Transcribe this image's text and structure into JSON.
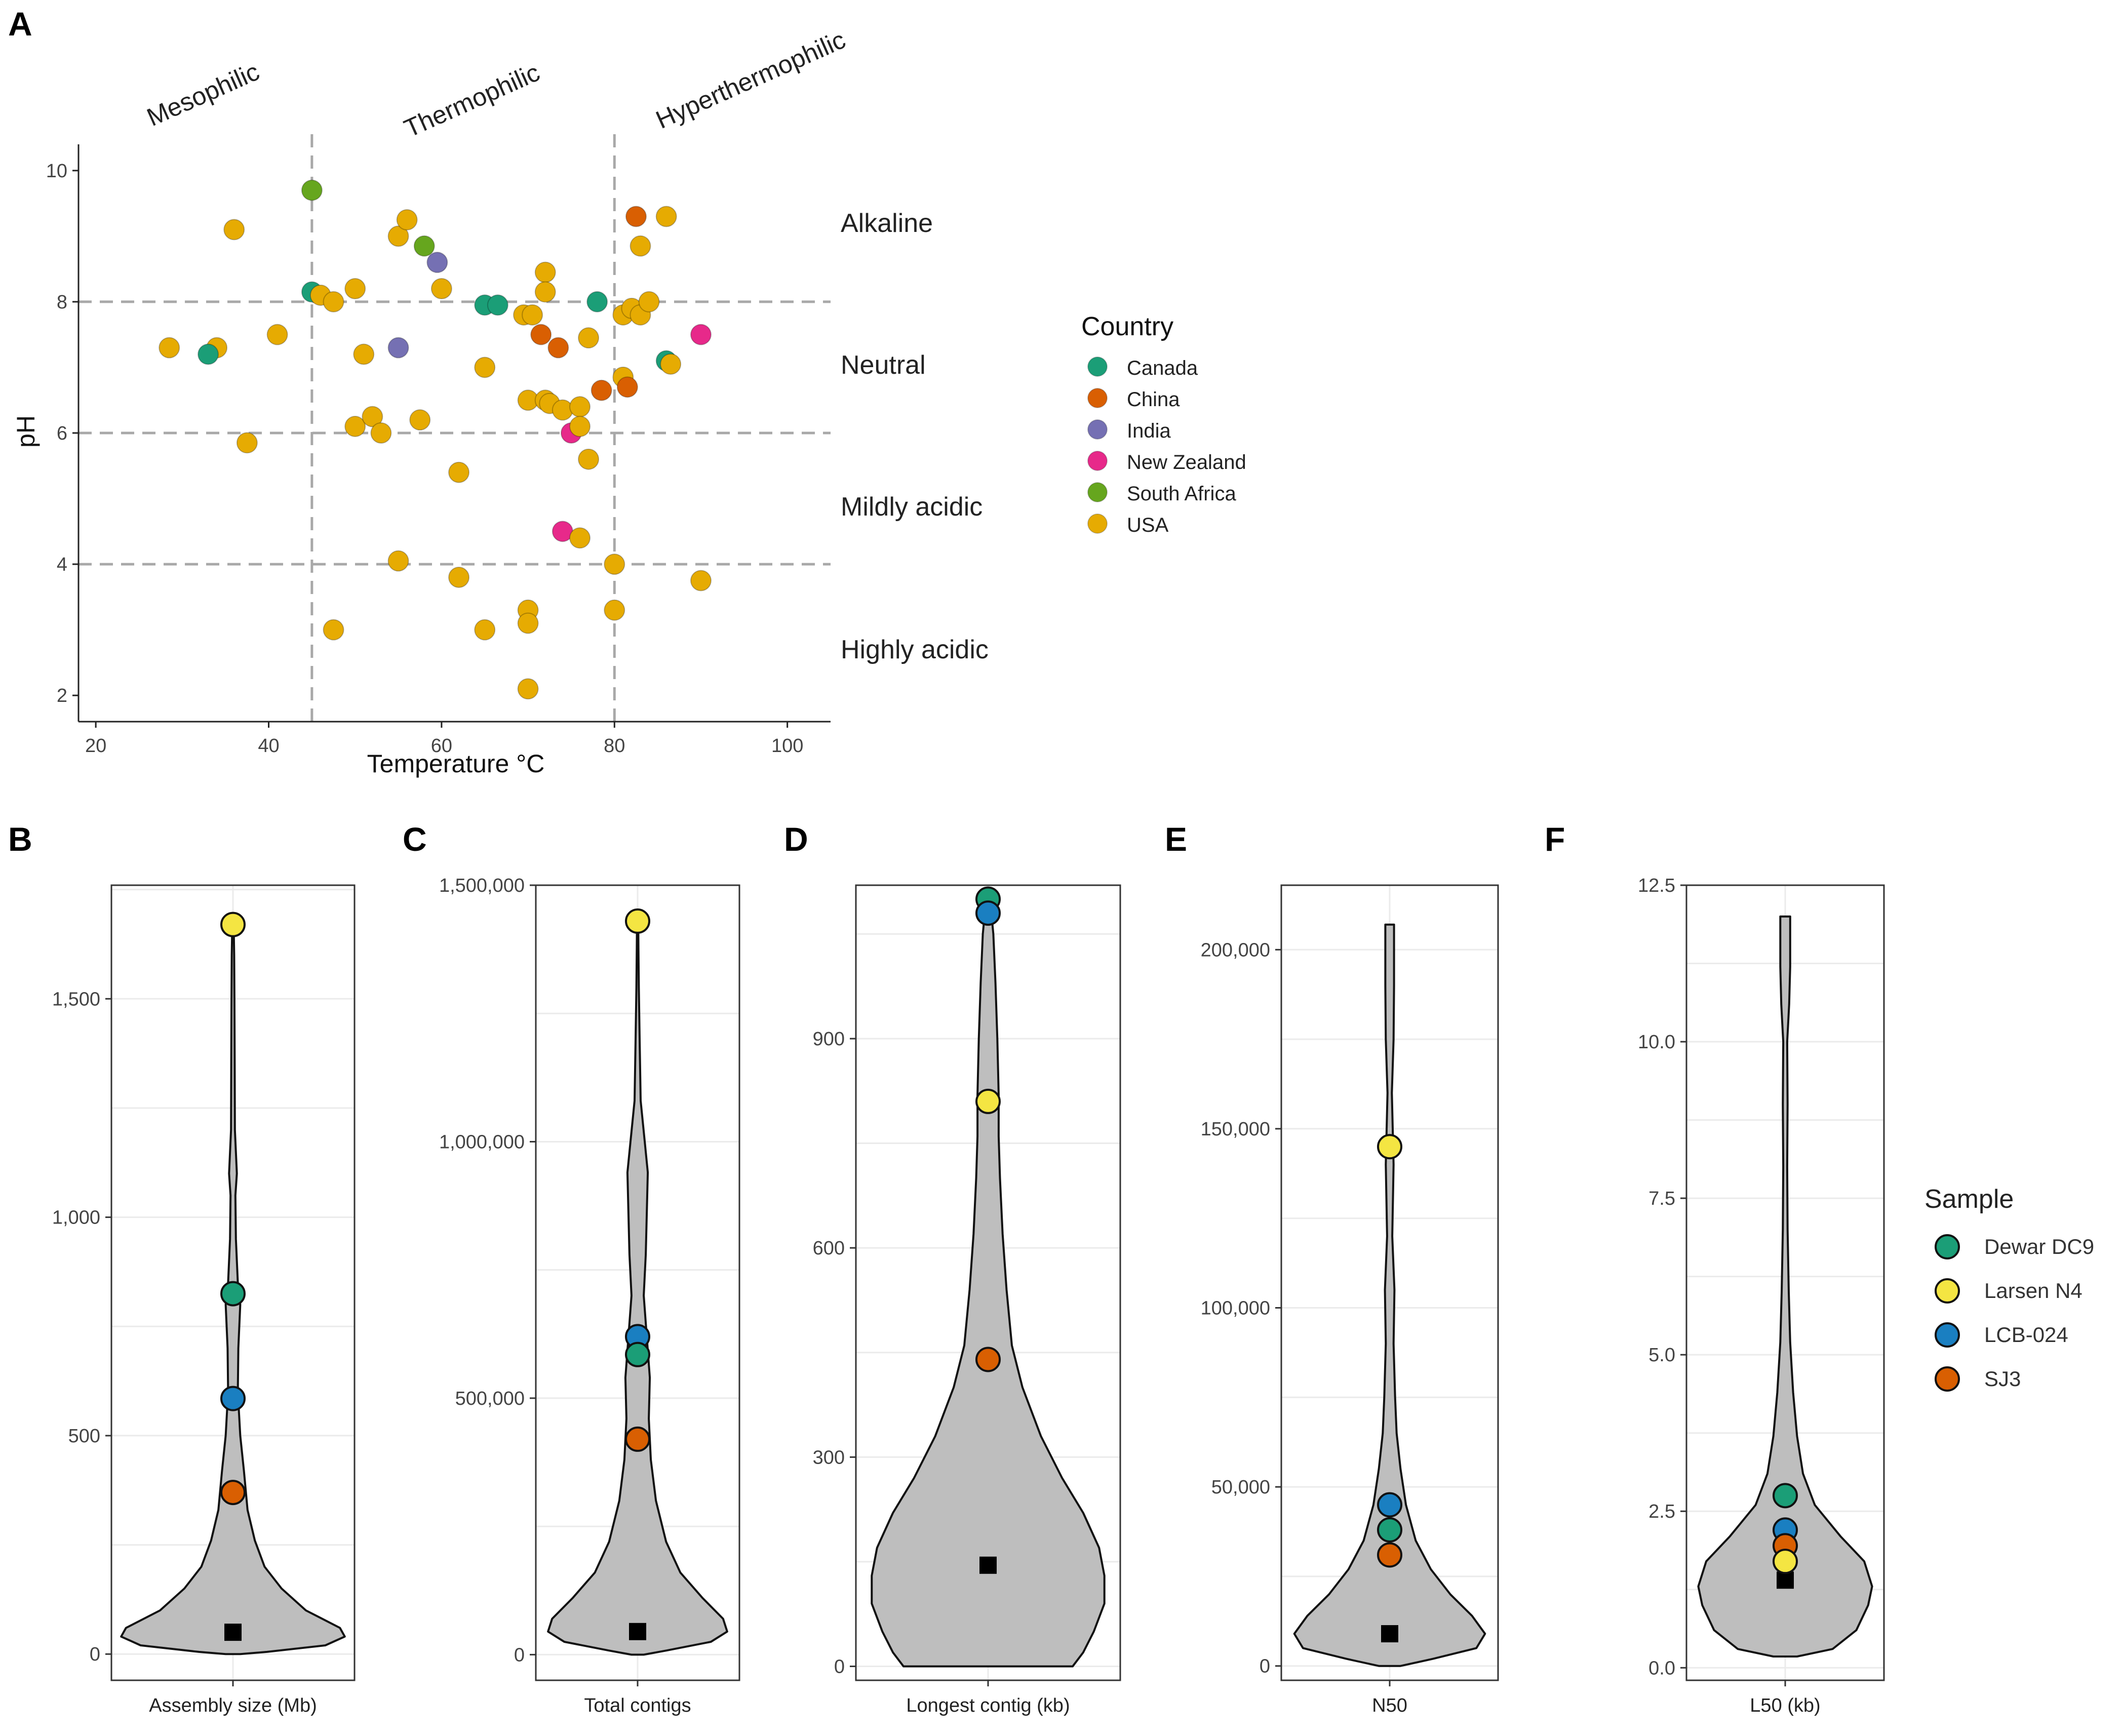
{
  "colors": {
    "Canada": "#1b9e77",
    "China": "#d95f02",
    "India": "#7570b3",
    "New Zealand": "#e7298a",
    "South Africa": "#66a61e",
    "USA": "#e6ab02",
    "Dewar DC9": "#1b9e77",
    "Larsen N4": "#f4e542",
    "LCB-024": "#1a7fc1",
    "SJ3": "#d95f02",
    "violin": "#bebebe"
  },
  "panel_labels": [
    "A",
    "B",
    "C",
    "D",
    "E",
    "F"
  ],
  "chart_data": [
    {
      "panel": "A",
      "type": "scatter",
      "xlabel": "Temperature °C",
      "ylabel": "pH",
      "xlim": [
        18,
        105
      ],
      "ylim": [
        1.6,
        10.4
      ],
      "xticks": [
        "20",
        "40",
        "60",
        "80",
        "100"
      ],
      "yticks": [
        "2",
        "4",
        "6",
        "8",
        "10"
      ],
      "vlines": [
        45,
        80
      ],
      "hlines": [
        4,
        6,
        8
      ],
      "top_labels": [
        "Mesophilic",
        "Thermophilic",
        "Hyperthermophilic"
      ],
      "right_labels": [
        "Alkaline",
        "Neutral",
        "Mildly acidic",
        "Highly acidic"
      ],
      "legend": {
        "title": "Country",
        "entries": [
          "Canada",
          "China",
          "India",
          "New Zealand",
          "South Africa",
          "USA"
        ],
        "position": "right"
      },
      "points": [
        {
          "x": 28.5,
          "y": 7.3,
          "country": "USA"
        },
        {
          "x": 34,
          "y": 7.3,
          "country": "USA"
        },
        {
          "x": 33,
          "y": 7.2,
          "country": "Canada"
        },
        {
          "x": 36,
          "y": 9.1,
          "country": "USA"
        },
        {
          "x": 37.5,
          "y": 5.85,
          "country": "USA"
        },
        {
          "x": 41,
          "y": 7.5,
          "country": "USA"
        },
        {
          "x": 45,
          "y": 9.7,
          "country": "South Africa"
        },
        {
          "x": 45,
          "y": 8.15,
          "country": "Canada"
        },
        {
          "x": 46,
          "y": 8.1,
          "country": "USA"
        },
        {
          "x": 47.5,
          "y": 8.0,
          "country": "USA"
        },
        {
          "x": 47.5,
          "y": 3.0,
          "country": "USA"
        },
        {
          "x": 50,
          "y": 8.2,
          "country": "USA"
        },
        {
          "x": 50,
          "y": 6.1,
          "country": "USA"
        },
        {
          "x": 51,
          "y": 7.2,
          "country": "USA"
        },
        {
          "x": 52,
          "y": 6.25,
          "country": "USA"
        },
        {
          "x": 53,
          "y": 6.0,
          "country": "USA"
        },
        {
          "x": 55,
          "y": 9.0,
          "country": "USA"
        },
        {
          "x": 56,
          "y": 9.25,
          "country": "USA"
        },
        {
          "x": 55,
          "y": 7.3,
          "country": "India"
        },
        {
          "x": 55,
          "y": 4.05,
          "country": "USA"
        },
        {
          "x": 58,
          "y": 8.85,
          "country": "South Africa"
        },
        {
          "x": 59.5,
          "y": 8.6,
          "country": "India"
        },
        {
          "x": 60,
          "y": 8.2,
          "country": "USA"
        },
        {
          "x": 57.5,
          "y": 6.2,
          "country": "USA"
        },
        {
          "x": 62,
          "y": 5.4,
          "country": "USA"
        },
        {
          "x": 62,
          "y": 3.8,
          "country": "USA"
        },
        {
          "x": 65,
          "y": 7.95,
          "country": "Canada"
        },
        {
          "x": 66.5,
          "y": 7.95,
          "country": "Canada"
        },
        {
          "x": 65,
          "y": 7.0,
          "country": "USA"
        },
        {
          "x": 65,
          "y": 3.0,
          "country": "USA"
        },
        {
          "x": 69.5,
          "y": 7.8,
          "country": "USA"
        },
        {
          "x": 70.5,
          "y": 7.8,
          "country": "USA"
        },
        {
          "x": 70,
          "y": 6.5,
          "country": "USA"
        },
        {
          "x": 70,
          "y": 3.3,
          "country": "USA"
        },
        {
          "x": 70,
          "y": 3.1,
          "country": "USA"
        },
        {
          "x": 70,
          "y": 2.1,
          "country": "USA"
        },
        {
          "x": 71.5,
          "y": 7.5,
          "country": "China"
        },
        {
          "x": 72,
          "y": 8.45,
          "country": "USA"
        },
        {
          "x": 72,
          "y": 8.15,
          "country": "USA"
        },
        {
          "x": 72,
          "y": 6.5,
          "country": "USA"
        },
        {
          "x": 72.5,
          "y": 6.45,
          "country": "USA"
        },
        {
          "x": 73.5,
          "y": 7.3,
          "country": "China"
        },
        {
          "x": 74,
          "y": 6.35,
          "country": "USA"
        },
        {
          "x": 74,
          "y": 4.5,
          "country": "New Zealand"
        },
        {
          "x": 75,
          "y": 6.0,
          "country": "New Zealand"
        },
        {
          "x": 76,
          "y": 6.4,
          "country": "USA"
        },
        {
          "x": 76,
          "y": 6.1,
          "country": "USA"
        },
        {
          "x": 76,
          "y": 4.4,
          "country": "USA"
        },
        {
          "x": 77,
          "y": 7.45,
          "country": "USA"
        },
        {
          "x": 77,
          "y": 5.6,
          "country": "USA"
        },
        {
          "x": 78,
          "y": 8.0,
          "country": "Canada"
        },
        {
          "x": 78.5,
          "y": 6.65,
          "country": "China"
        },
        {
          "x": 80,
          "y": 4.0,
          "country": "USA"
        },
        {
          "x": 80,
          "y": 3.3,
          "country": "USA"
        },
        {
          "x": 81,
          "y": 7.8,
          "country": "USA"
        },
        {
          "x": 81,
          "y": 6.85,
          "country": "USA"
        },
        {
          "x": 81.5,
          "y": 6.7,
          "country": "China"
        },
        {
          "x": 82,
          "y": 7.9,
          "country": "USA"
        },
        {
          "x": 82.5,
          "y": 9.3,
          "country": "China"
        },
        {
          "x": 83,
          "y": 8.85,
          "country": "USA"
        },
        {
          "x": 83,
          "y": 7.8,
          "country": "USA"
        },
        {
          "x": 84,
          "y": 8.0,
          "country": "USA"
        },
        {
          "x": 86,
          "y": 9.3,
          "country": "USA"
        },
        {
          "x": 86,
          "y": 7.1,
          "country": "Canada"
        },
        {
          "x": 86.5,
          "y": 7.05,
          "country": "USA"
        },
        {
          "x": 90,
          "y": 7.5,
          "country": "New Zealand"
        },
        {
          "x": 90,
          "y": 3.75,
          "country": "USA"
        }
      ]
    },
    {
      "panel": "B",
      "type": "violin",
      "xlabel": "Assembly size (Mb)",
      "ylim": [
        -60,
        1760
      ],
      "ticks": [
        0,
        500,
        1000,
        1500
      ],
      "tick_labels": [
        "0",
        "500",
        "1,000",
        "1,500"
      ],
      "median": 50,
      "density_profile": [
        [
          0,
          0.03
        ],
        [
          5,
          0.14
        ],
        [
          20,
          0.38
        ],
        [
          40,
          0.46
        ],
        [
          60,
          0.44
        ],
        [
          100,
          0.3
        ],
        [
          150,
          0.2
        ],
        [
          200,
          0.13
        ],
        [
          260,
          0.09
        ],
        [
          330,
          0.06
        ],
        [
          420,
          0.045
        ],
        [
          500,
          0.03
        ],
        [
          600,
          0.02
        ],
        [
          700,
          0.022
        ],
        [
          800,
          0.03
        ],
        [
          850,
          0.02
        ],
        [
          950,
          0.012
        ],
        [
          1050,
          0.01
        ],
        [
          1100,
          0.016
        ],
        [
          1200,
          0.008
        ],
        [
          1350,
          0.007
        ],
        [
          1500,
          0.006
        ],
        [
          1600,
          0.005
        ],
        [
          1670,
          0.003
        ]
      ],
      "samples": [
        {
          "name": "Larsen N4",
          "value": 1670
        },
        {
          "name": "Dewar DC9",
          "value": 825
        },
        {
          "name": "LCB-024",
          "value": 585
        },
        {
          "name": "SJ3",
          "value": 370
        }
      ]
    },
    {
      "panel": "C",
      "type": "violin",
      "xlabel": "Total contigs",
      "ylim": [
        -50000,
        1500000
      ],
      "ticks": [
        0,
        500000,
        1000000,
        1500000
      ],
      "tick_labels": [
        "0",
        "500,000",
        "1,000,000",
        "1,500,000"
      ],
      "median": 45000,
      "density_profile": [
        [
          0,
          0.03
        ],
        [
          8000,
          0.14
        ],
        [
          25000,
          0.36
        ],
        [
          45000,
          0.44
        ],
        [
          70000,
          0.42
        ],
        [
          110000,
          0.32
        ],
        [
          160000,
          0.21
        ],
        [
          220000,
          0.14
        ],
        [
          300000,
          0.09
        ],
        [
          380000,
          0.065
        ],
        [
          460000,
          0.055
        ],
        [
          540000,
          0.06
        ],
        [
          620000,
          0.045
        ],
        [
          700000,
          0.03
        ],
        [
          780000,
          0.04
        ],
        [
          860000,
          0.045
        ],
        [
          940000,
          0.05
        ],
        [
          1000000,
          0.035
        ],
        [
          1080000,
          0.015
        ],
        [
          1200000,
          0.01
        ],
        [
          1300000,
          0.006
        ],
        [
          1380000,
          0.004
        ],
        [
          1430000,
          0.003
        ]
      ],
      "samples": [
        {
          "name": "Larsen N4",
          "value": 1430000
        },
        {
          "name": "LCB-024",
          "value": 620000
        },
        {
          "name": "Dewar DC9",
          "value": 585000
        },
        {
          "name": "SJ3",
          "value": 420000
        }
      ]
    },
    {
      "panel": "D",
      "type": "violin",
      "xlabel": "Longest contig (kb)",
      "ylim": [
        -20,
        1120
      ],
      "ticks": [
        0,
        300,
        600,
        900
      ],
      "tick_labels": [
        "0",
        "300",
        "600",
        "900"
      ],
      "median": 145,
      "density_profile": [
        [
          0,
          0.32
        ],
        [
          20,
          0.36
        ],
        [
          50,
          0.4
        ],
        [
          90,
          0.44
        ],
        [
          130,
          0.44
        ],
        [
          170,
          0.42
        ],
        [
          220,
          0.36
        ],
        [
          270,
          0.28
        ],
        [
          330,
          0.2
        ],
        [
          400,
          0.13
        ],
        [
          460,
          0.09
        ],
        [
          540,
          0.07
        ],
        [
          620,
          0.055
        ],
        [
          700,
          0.045
        ],
        [
          760,
          0.04
        ],
        [
          820,
          0.04
        ],
        [
          900,
          0.035
        ],
        [
          980,
          0.028
        ],
        [
          1050,
          0.02
        ],
        [
          1090,
          0.01
        ],
        [
          1100,
          0.005
        ]
      ],
      "samples": [
        {
          "name": "Dewar DC9",
          "value": 1100
        },
        {
          "name": "LCB-024",
          "value": 1080
        },
        {
          "name": "Larsen N4",
          "value": 810
        },
        {
          "name": "SJ3",
          "value": 440
        }
      ]
    },
    {
      "panel": "E",
      "type": "violin",
      "xlabel": "N50",
      "ylim": [
        -4000,
        218000
      ],
      "ticks": [
        0,
        50000,
        100000,
        150000,
        200000
      ],
      "tick_labels": [
        "0",
        "50,000",
        "100,000",
        "150,000",
        "200,000"
      ],
      "median": 9000,
      "density_profile": [
        [
          0,
          0.05
        ],
        [
          2000,
          0.2
        ],
        [
          5000,
          0.4
        ],
        [
          9000,
          0.44
        ],
        [
          14000,
          0.38
        ],
        [
          20000,
          0.28
        ],
        [
          27000,
          0.19
        ],
        [
          35000,
          0.12
        ],
        [
          45000,
          0.075
        ],
        [
          55000,
          0.05
        ],
        [
          65000,
          0.032
        ],
        [
          75000,
          0.025
        ],
        [
          90000,
          0.018
        ],
        [
          105000,
          0.022
        ],
        [
          120000,
          0.012
        ],
        [
          140000,
          0.018
        ],
        [
          160000,
          0.01
        ],
        [
          175000,
          0.018
        ],
        [
          190000,
          0.02
        ],
        [
          200000,
          0.02
        ],
        [
          207000,
          0.02
        ]
      ],
      "samples": [
        {
          "name": "Larsen N4",
          "value": 145000
        },
        {
          "name": "LCB-024",
          "value": 45000
        },
        {
          "name": "Dewar DC9",
          "value": 38000
        },
        {
          "name": "SJ3",
          "value": 31000
        }
      ]
    },
    {
      "panel": "F",
      "type": "violin",
      "xlabel": "L50 (kb)",
      "ylim": [
        -0.2,
        12.5
      ],
      "ticks": [
        0,
        2.5,
        5,
        7.5,
        10,
        12.5
      ],
      "tick_labels": [
        "0.0",
        "2.5",
        "5.0",
        "7.5",
        "10.0",
        "12.5"
      ],
      "median": 1.4,
      "density_profile": [
        [
          0.18,
          0.06
        ],
        [
          0.3,
          0.24
        ],
        [
          0.6,
          0.36
        ],
        [
          1.0,
          0.42
        ],
        [
          1.3,
          0.44
        ],
        [
          1.7,
          0.4
        ],
        [
          2.1,
          0.28
        ],
        [
          2.6,
          0.15
        ],
        [
          3.1,
          0.09
        ],
        [
          3.7,
          0.06
        ],
        [
          4.4,
          0.04
        ],
        [
          5.2,
          0.025
        ],
        [
          6.0,
          0.018
        ],
        [
          7.0,
          0.012
        ],
        [
          8.0,
          0.01
        ],
        [
          9.0,
          0.012
        ],
        [
          10.0,
          0.01
        ],
        [
          10.6,
          0.02
        ],
        [
          11.2,
          0.025
        ],
        [
          11.8,
          0.025
        ],
        [
          12.0,
          0.025
        ]
      ],
      "samples": [
        {
          "name": "Dewar DC9",
          "value": 2.75
        },
        {
          "name": "LCB-024",
          "value": 2.2
        },
        {
          "name": "SJ3",
          "value": 1.95
        },
        {
          "name": "Larsen N4",
          "value": 1.7
        }
      ]
    }
  ],
  "sample_legend": {
    "title": "Sample",
    "entries": [
      "Dewar DC9",
      "Larsen N4",
      "LCB-024",
      "SJ3"
    ],
    "position": "right"
  }
}
